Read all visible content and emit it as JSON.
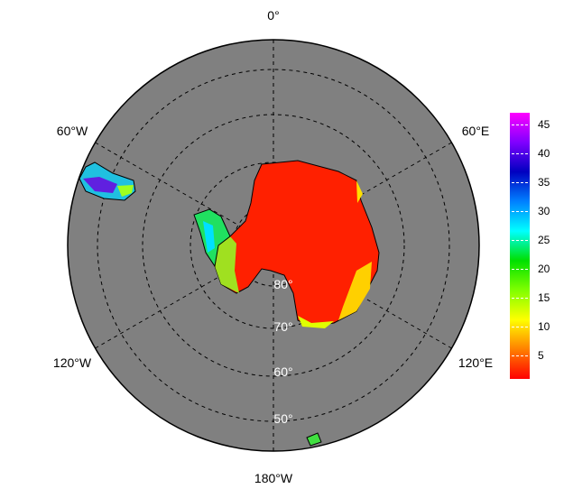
{
  "map": {
    "projection": "south polar stereographic",
    "background_color": "#808080",
    "meridian_labels": [
      "0°",
      "60°E",
      "120°E",
      "180°W",
      "120°W",
      "60°W"
    ],
    "latitude_labels": [
      "80°",
      "70°",
      "60°",
      "50°"
    ]
  },
  "colorbar": {
    "ticks": [
      "5",
      "10",
      "15",
      "20",
      "25",
      "30",
      "35",
      "40",
      "45"
    ],
    "range": [
      1,
      47
    ],
    "colors": [
      "#ff0000",
      "#ff8000",
      "#ffff00",
      "#80ff00",
      "#00e000",
      "#00ffff",
      "#0080ff",
      "#0000c0",
      "#8000ff",
      "#ff00ff"
    ]
  }
}
